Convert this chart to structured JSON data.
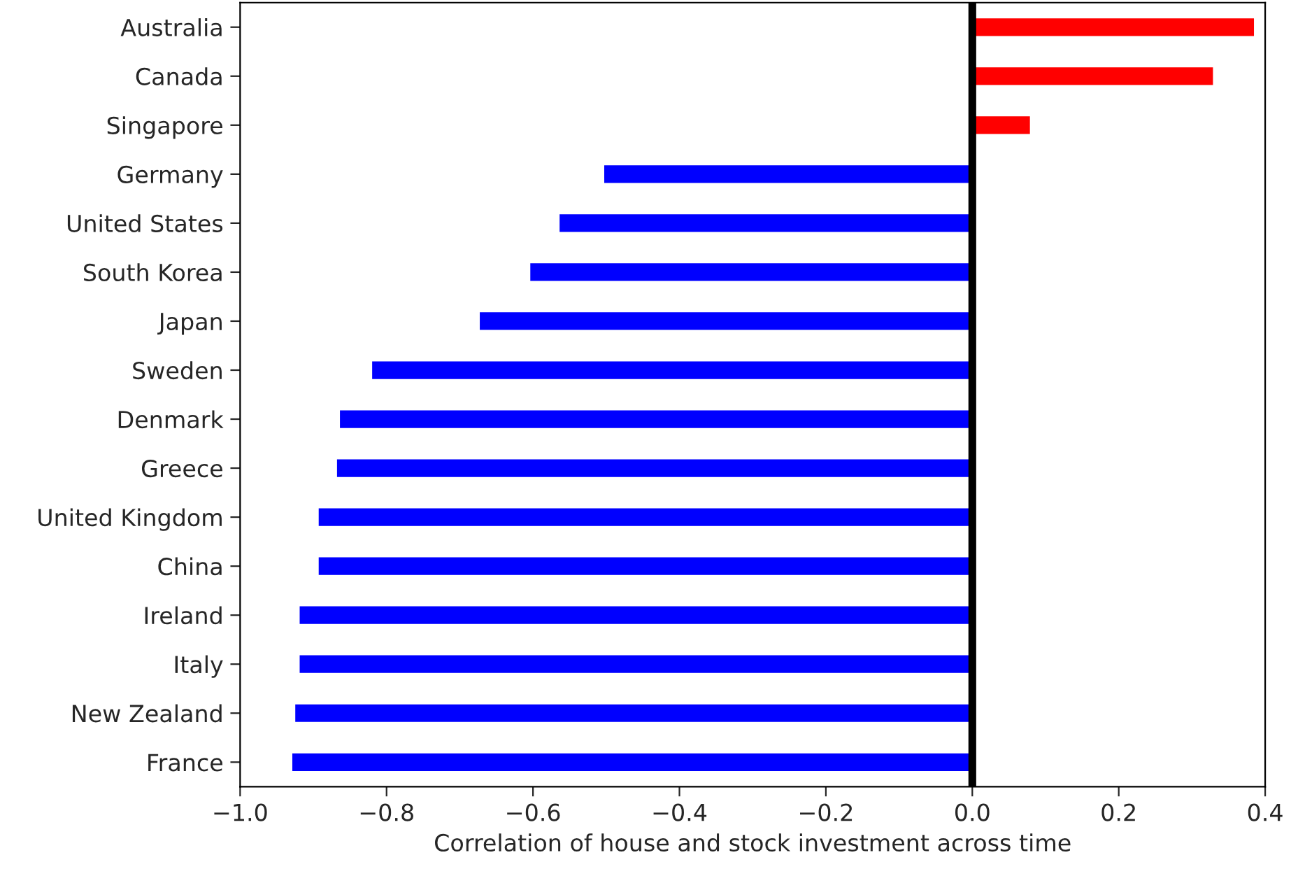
{
  "chart_data": {
    "type": "bar",
    "orientation": "horizontal",
    "xlabel": "Correlation of house and stock investment across time",
    "categories": [
      "Australia",
      "Canada",
      "Singapore",
      "Germany",
      "United States",
      "South Korea",
      "Japan",
      "Sweden",
      "Denmark",
      "Greece",
      "United Kingdom",
      "China",
      "Ireland",
      "Italy",
      "New Zealand",
      "France"
    ],
    "values": [
      0.386,
      0.33,
      0.08,
      -0.504,
      -0.565,
      -0.605,
      -0.674,
      -0.821,
      -0.865,
      -0.869,
      -0.894,
      -0.894,
      -0.92,
      -0.92,
      -0.926,
      -0.93
    ],
    "colors": [
      "#ff0000",
      "#ff0000",
      "#ff0000",
      "#0000ff",
      "#0000ff",
      "#0000ff",
      "#0000ff",
      "#0000ff",
      "#0000ff",
      "#0000ff",
      "#0000ff",
      "#0000ff",
      "#0000ff",
      "#0000ff",
      "#0000ff",
      "#0000ff"
    ],
    "xlim": [
      -1.0,
      0.4
    ],
    "xticks": [
      {
        "value": -1.0,
        "label": "−1.0"
      },
      {
        "value": -0.8,
        "label": "−0.8"
      },
      {
        "value": -0.6,
        "label": "−0.6"
      },
      {
        "value": -0.4,
        "label": "−0.4"
      },
      {
        "value": -0.2,
        "label": "−0.2"
      },
      {
        "value": 0.0,
        "label": "0.0"
      },
      {
        "value": 0.2,
        "label": "0.2"
      },
      {
        "value": 0.4,
        "label": "0.4"
      }
    ],
    "ref_lines": [
      {
        "axis": "x",
        "value": 0,
        "color": "#000000"
      }
    ],
    "grid": false,
    "legend": false
  }
}
